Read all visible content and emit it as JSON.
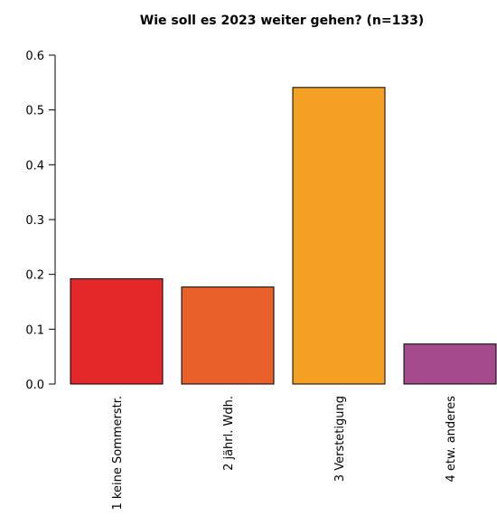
{
  "chart_data": {
    "type": "bar",
    "title": "Wie soll es 2023 weiter gehen? (n=133)",
    "xlabel": "",
    "ylabel": "",
    "categories": [
      "1 keine Sommerstr.",
      "2 jährl. Wdh.",
      "3 Verstetigung",
      "4 etw. anderes"
    ],
    "values": [
      0.192,
      0.177,
      0.541,
      0.073
    ],
    "colors": [
      "#e4282a",
      "#e8612b",
      "#f4a024",
      "#a64a8e"
    ],
    "ylim": [
      0,
      0.6
    ],
    "yticks": [
      "0.0",
      "0.1",
      "0.2",
      "0.3",
      "0.4",
      "0.5",
      "0.6"
    ],
    "grid": false,
    "legend": "none"
  }
}
